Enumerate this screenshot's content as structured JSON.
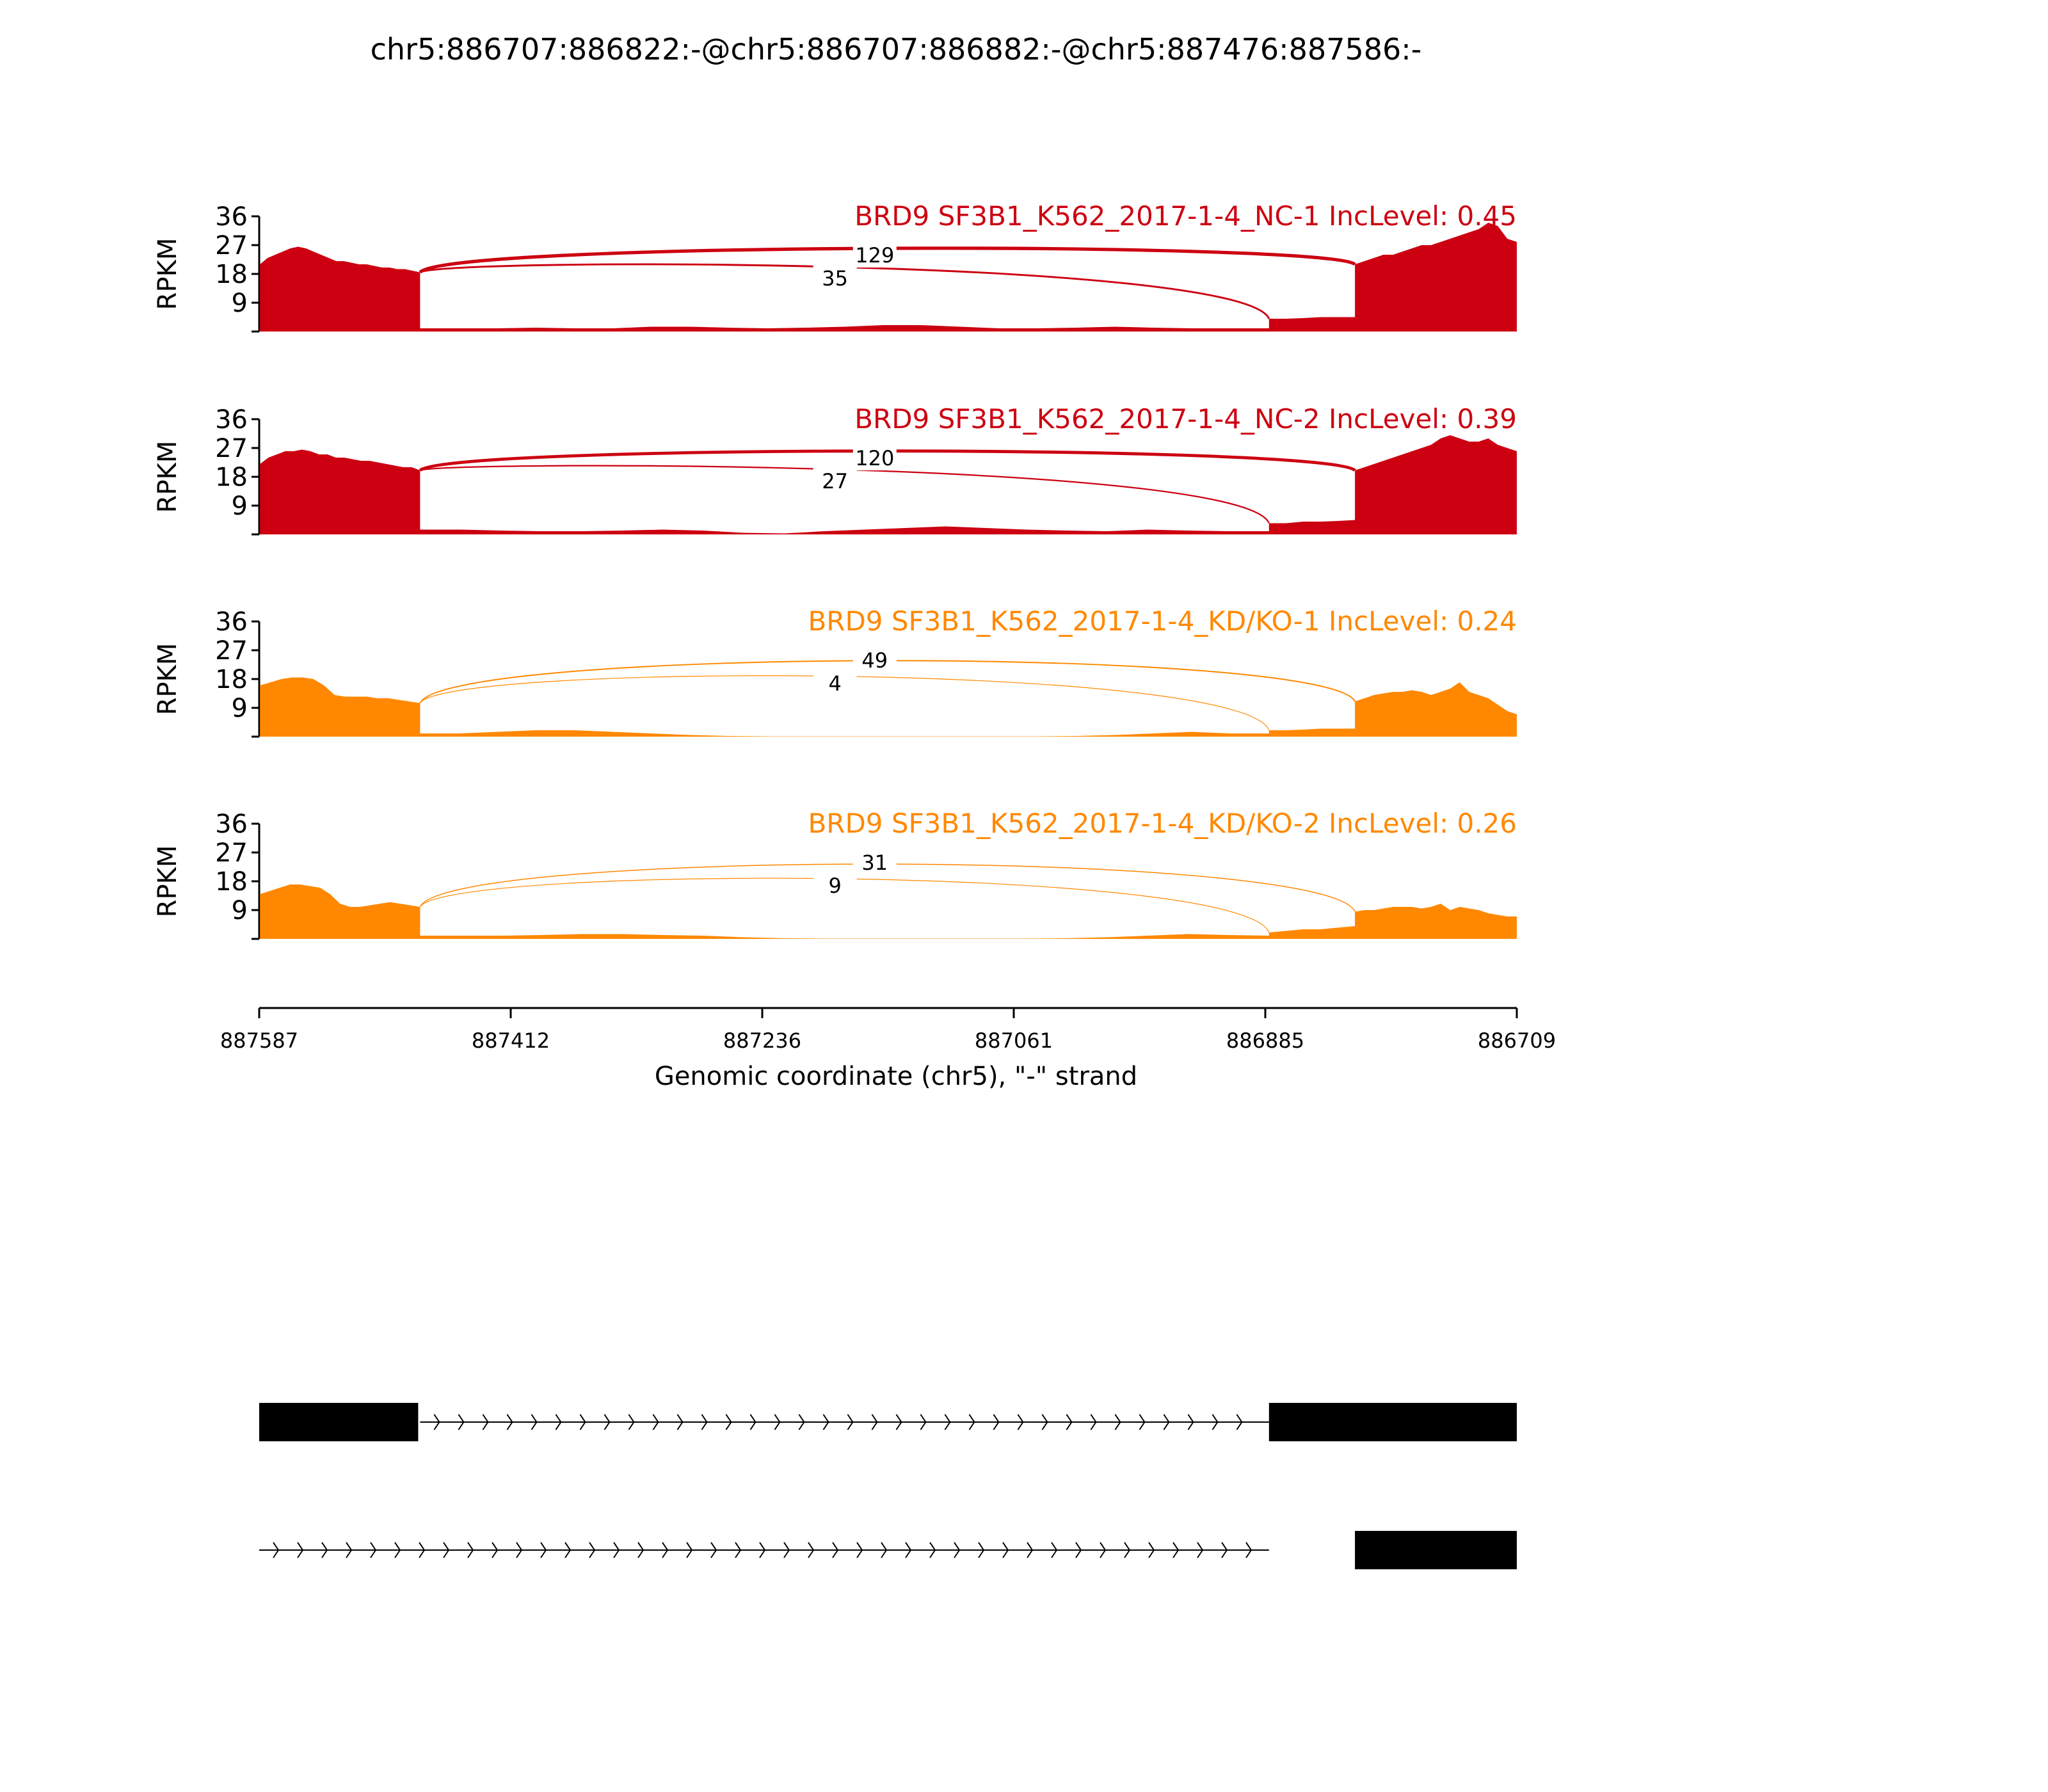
{
  "title": "chr5:886707:886822:-@chr5:886707:886882:-@chr5:887476:887586:-",
  "colors": {
    "nc": "#cc0011",
    "kd": "#ff8800",
    "axis": "#000000",
    "exon": "#000000"
  },
  "chart_data": {
    "type": "area",
    "x_axis": {
      "label": "Genomic coordinate (chr5), \"-\" strand",
      "ticks": [
        887587,
        887412,
        887236,
        887061,
        886885,
        886709
      ],
      "range": [
        887587,
        886709
      ],
      "reversed": true
    },
    "y_axis": {
      "label": "RPKM",
      "ticks": [
        9,
        18,
        27,
        36
      ],
      "range": [
        0,
        36
      ]
    },
    "exons": {
      "upstream": [
        887586,
        887476
      ],
      "middle": [
        886882,
        886822
      ],
      "downstream": [
        886822,
        886709
      ]
    },
    "tracks": [
      {
        "label": "BRD9 SF3B1_K562_2017-1-4_NC-1 IncLevel: 0.45",
        "color_key": "nc",
        "junctions": [
          {
            "label": "129",
            "count": 129,
            "type": "skip"
          },
          {
            "label": "35",
            "count": 35,
            "type": "include"
          }
        ],
        "coverage": {
          "exon1": [
            21,
            23,
            24,
            25,
            26,
            26.5,
            26,
            25,
            24,
            23,
            22,
            22,
            21.5,
            21,
            21,
            20.5,
            20,
            20,
            19.5,
            19.5,
            19,
            18.5
          ],
          "intron1": [
            1,
            1,
            1,
            1.2,
            1,
            1,
            1.5,
            1.5,
            1.2,
            1,
            1.2,
            1.5,
            2,
            2,
            1.5,
            1,
            1,
            1.2,
            1.5,
            1.2,
            1,
            1,
            1
          ],
          "exon2": [
            4,
            4,
            4.2,
            4.5,
            4.5,
            4.5
          ],
          "exon3": [
            21,
            22,
            23,
            24,
            24,
            25,
            26,
            27,
            27,
            28,
            29,
            30,
            31,
            32,
            34,
            33,
            29,
            28
          ]
        }
      },
      {
        "label": "BRD9 SF3B1_K562_2017-1-4_NC-2 IncLevel: 0.39",
        "color_key": "nc",
        "junctions": [
          {
            "label": "120",
            "count": 120,
            "type": "skip"
          },
          {
            "label": "27",
            "count": 27,
            "type": "include"
          }
        ],
        "coverage": {
          "exon1": [
            22,
            24,
            25,
            26,
            26,
            26.5,
            26,
            25,
            25,
            24,
            24,
            23.5,
            23,
            23,
            22.5,
            22,
            21.5,
            21,
            21,
            20
          ],
          "intron1": [
            1.5,
            1.5,
            1.2,
            1,
            1,
            1.2,
            1.5,
            1.2,
            0.5,
            0.3,
            1,
            1.5,
            2,
            2.5,
            2,
            1.5,
            1.2,
            1,
            1.5,
            1.2,
            1,
            1
          ],
          "exon2": [
            3.5,
            3.5,
            4,
            4,
            4.2,
            4.5
          ],
          "exon3": [
            20,
            21,
            22,
            23,
            24,
            25,
            26,
            27,
            28,
            30,
            31,
            30,
            29,
            29,
            30,
            28,
            27,
            26
          ]
        }
      },
      {
        "label": "BRD9 SF3B1_K562_2017-1-4_KD/KO-1 IncLevel: 0.24",
        "color_key": "kd",
        "junctions": [
          {
            "label": "49",
            "count": 49,
            "type": "skip"
          },
          {
            "label": "4",
            "count": 4,
            "type": "include"
          }
        ],
        "coverage": {
          "exon1": [
            16,
            17,
            18,
            18.5,
            18.5,
            18,
            16,
            13,
            12.5,
            12.5,
            12.5,
            12,
            12,
            11.5,
            11,
            10.5
          ],
          "intron1": [
            1,
            1,
            1.5,
            2,
            2,
            1.5,
            1,
            0.5,
            0.2,
            0.1,
            0.1,
            0.1,
            0.1,
            0.1,
            0.1,
            0.1,
            0.1,
            0.2,
            0.5,
            1,
            1.5,
            1,
            1
          ],
          "exon2": [
            2,
            2,
            2.2,
            2.5,
            2.5,
            2.5
          ],
          "exon3": [
            11,
            12,
            13,
            13.5,
            14,
            14,
            14.5,
            14,
            13,
            14,
            15,
            17,
            14,
            13,
            12,
            10,
            8,
            7
          ]
        }
      },
      {
        "label": "BRD9 SF3B1_K562_2017-1-4_KD/KO-2 IncLevel: 0.26",
        "color_key": "kd",
        "junctions": [
          {
            "label": "31",
            "count": 31,
            "type": "skip"
          },
          {
            "label": "9",
            "count": 9,
            "type": "include"
          }
        ],
        "coverage": {
          "exon1": [
            14,
            15,
            16,
            17,
            17,
            16.5,
            16,
            14,
            11,
            10,
            10,
            10.5,
            11,
            11.5,
            11,
            10.5,
            10
          ],
          "intron1": [
            1,
            1,
            1,
            1.2,
            1.5,
            1.5,
            1.2,
            1,
            0.5,
            0.2,
            0.1,
            0.1,
            0.1,
            0.1,
            0.1,
            0.1,
            0.2,
            0.5,
            1,
            1.5,
            1.2,
            1
          ],
          "exon2": [
            2,
            2.5,
            3,
            3,
            3.5,
            4
          ],
          "exon3": [
            8.5,
            9,
            9,
            9.5,
            10,
            10,
            10,
            9.5,
            10,
            11,
            9,
            10,
            9.5,
            9,
            8,
            7.5,
            7,
            7
          ]
        }
      }
    ],
    "isoforms": [
      {
        "exons": [
          [
            887586,
            887476
          ],
          [
            886882,
            886709
          ]
        ]
      },
      {
        "exons": [
          [
            886822,
            886709
          ]
        ]
      }
    ]
  }
}
